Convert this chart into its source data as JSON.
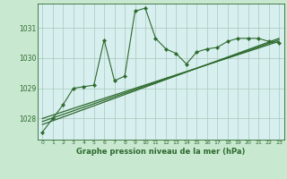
{
  "title": "Graphe pression niveau de la mer (hPa)",
  "background_color": "#c8e8d0",
  "plot_bg_color": "#d8eff0",
  "grid_color": "#a8c8b8",
  "line_color": "#2d6a2d",
  "xlim": [
    -0.5,
    23.5
  ],
  "ylim": [
    1027.3,
    1031.8
  ],
  "yticks": [
    1028,
    1029,
    1030,
    1031
  ],
  "xticks": [
    0,
    1,
    2,
    3,
    4,
    5,
    6,
    7,
    8,
    9,
    10,
    11,
    12,
    13,
    14,
    15,
    16,
    17,
    18,
    19,
    20,
    21,
    22,
    23
  ],
  "series1_x": [
    0,
    1,
    2,
    3,
    4,
    5,
    6,
    7,
    8,
    9,
    10,
    11,
    12,
    13,
    14,
    15,
    16,
    17,
    18,
    19,
    20,
    21,
    22,
    23
  ],
  "series1_y": [
    1027.55,
    1028.0,
    1028.45,
    1029.0,
    1029.05,
    1029.1,
    1030.6,
    1029.25,
    1029.4,
    1031.55,
    1031.65,
    1030.65,
    1030.3,
    1030.15,
    1029.8,
    1030.2,
    1030.3,
    1030.35,
    1030.55,
    1030.65,
    1030.65,
    1030.65,
    1030.55,
    1030.5
  ],
  "series2_x": [
    0,
    23
  ],
  "series2_y": [
    1028.0,
    1030.55
  ],
  "series3_x": [
    0,
    23
  ],
  "series3_y": [
    1027.9,
    1030.6
  ],
  "series4_x": [
    0,
    23
  ],
  "series4_y": [
    1027.8,
    1030.65
  ]
}
